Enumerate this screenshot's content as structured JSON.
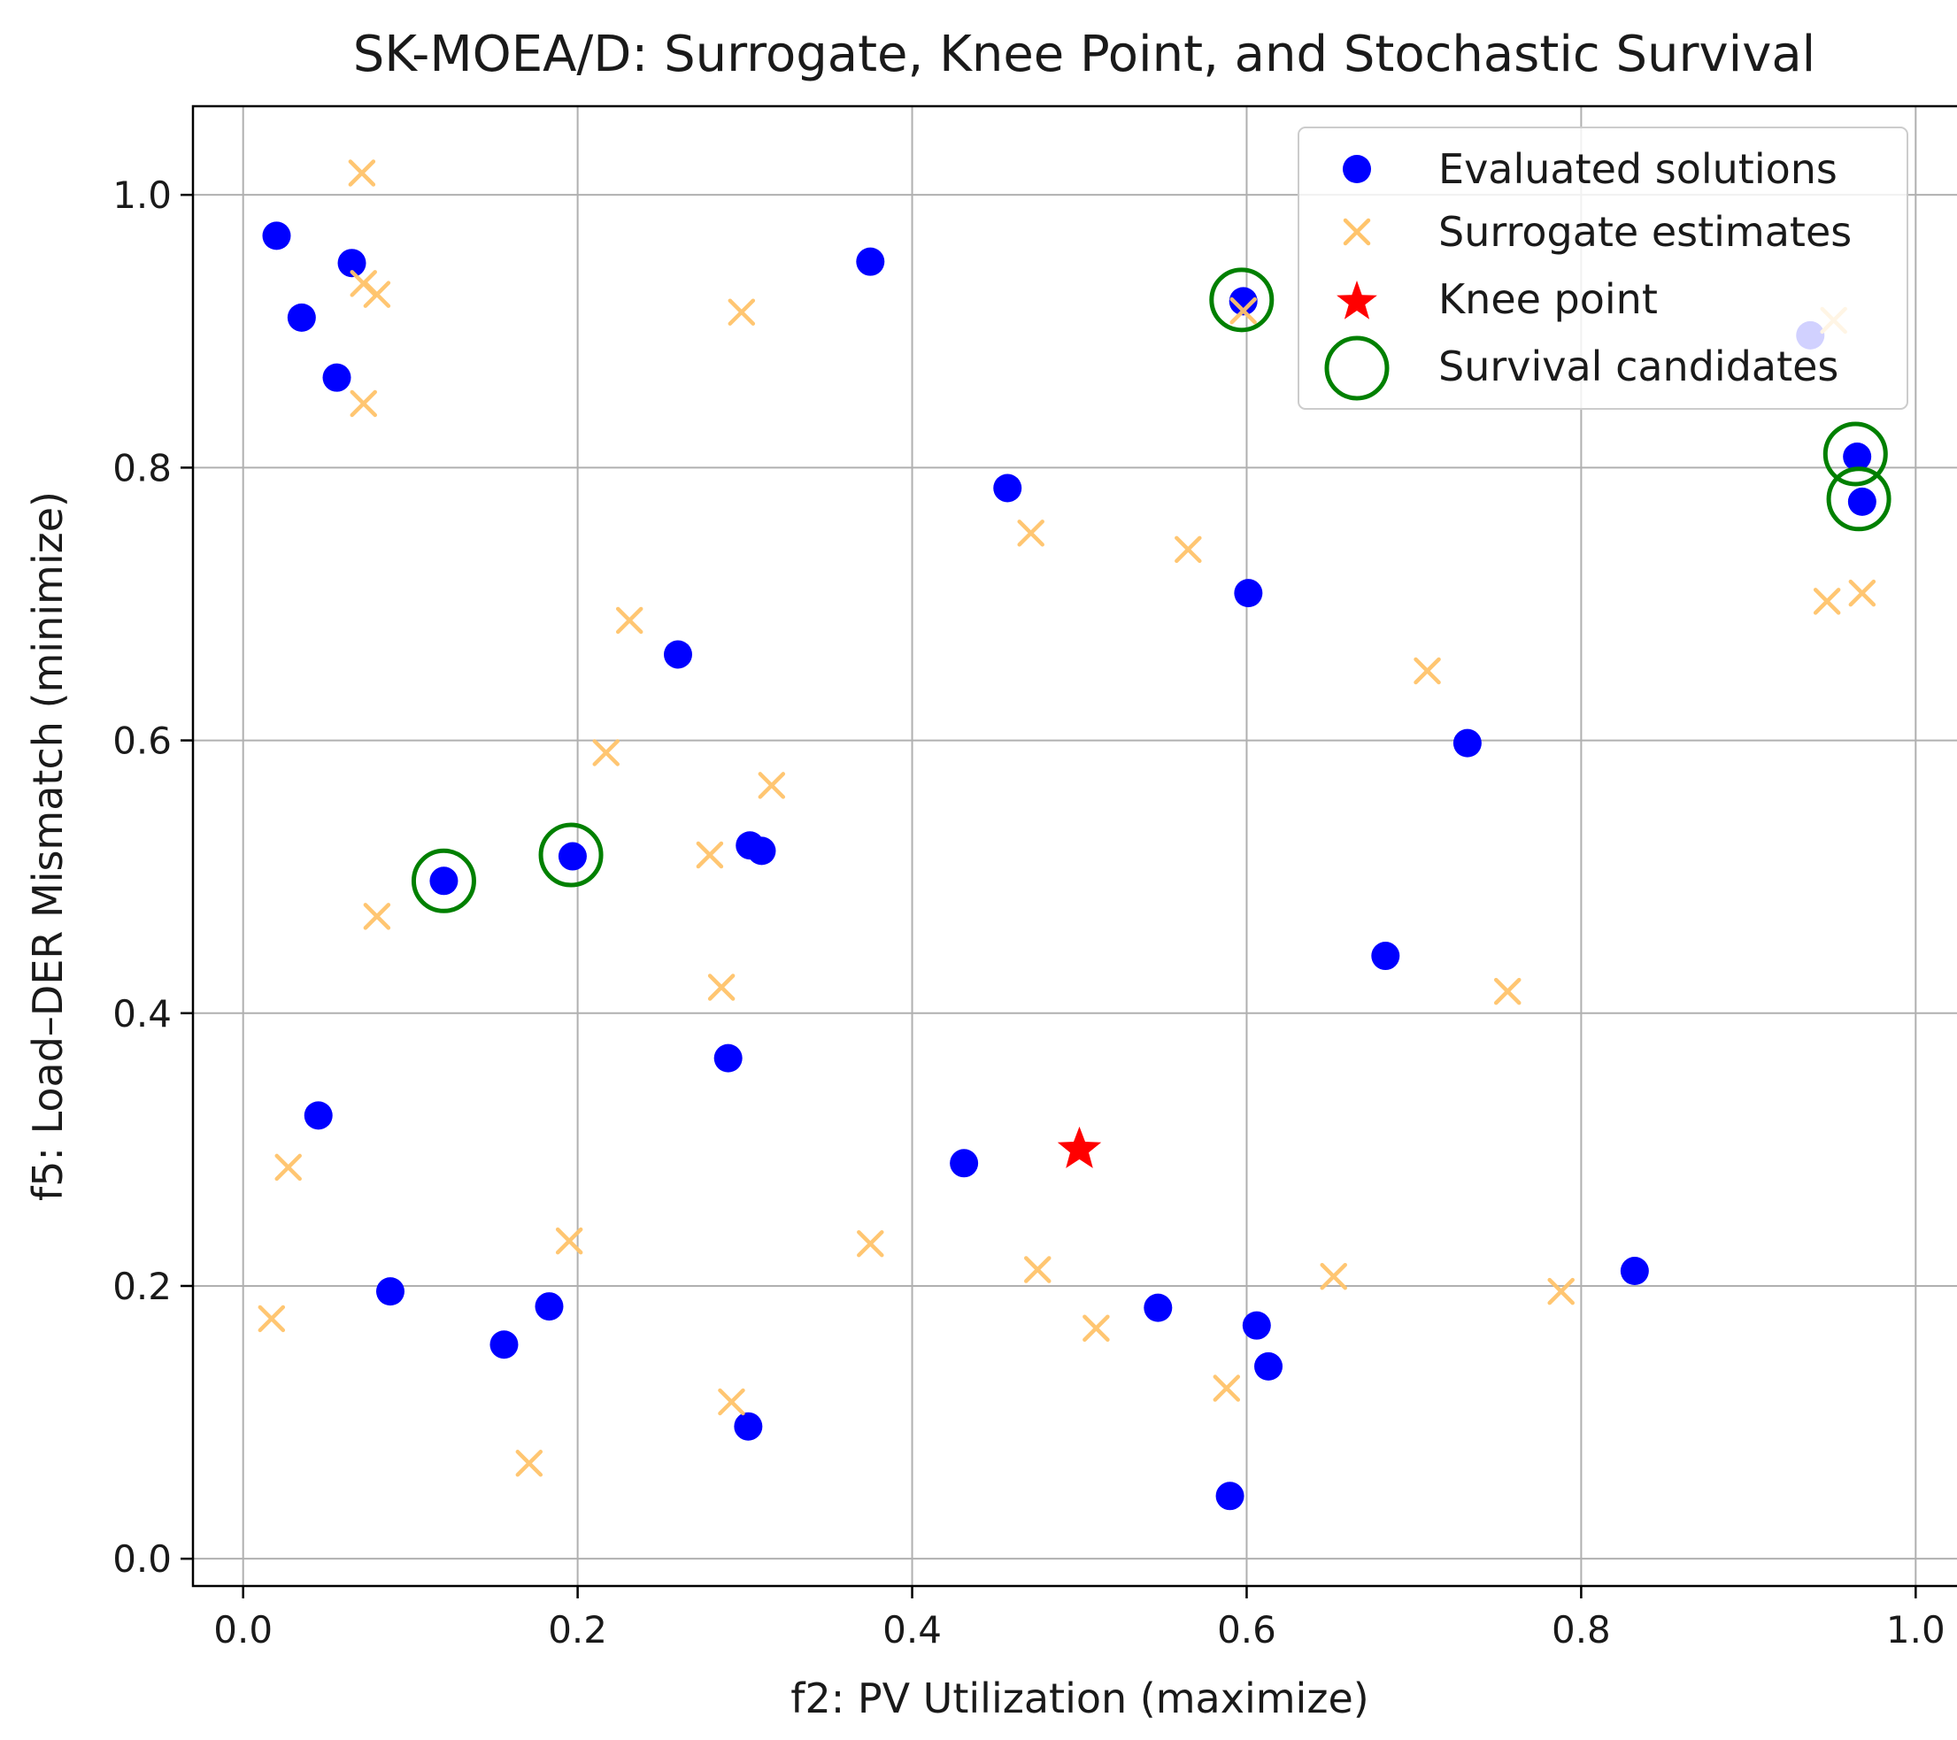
{
  "chart_data": {
    "type": "scatter",
    "title": "SK-MOEA/D: Surrogate, Knee Point, and Stochastic Survival",
    "xlabel": "f2: PV Utilization (maximize)",
    "ylabel": "f5: Load–DER Mismatch (minimize)",
    "xlim": [
      -0.03,
      1.03
    ],
    "ylim": [
      -0.02,
      1.065
    ],
    "xticks": [
      0.0,
      0.2,
      0.4,
      0.6,
      0.8,
      1.0
    ],
    "xtick_labels": [
      "0.0",
      "0.2",
      "0.4",
      "0.6",
      "0.8",
      "1.0"
    ],
    "yticks": [
      0.0,
      0.2,
      0.4,
      0.6,
      0.8,
      1.0
    ],
    "ytick_labels": [
      "0.0",
      "0.2",
      "0.4",
      "0.6",
      "0.8",
      "1.0"
    ],
    "grid": true,
    "legend_position": "top-right",
    "colors": {
      "evaluated": "#0000ff",
      "surrogate": "#ffc46b",
      "knee": "#ff0000",
      "survival": "#008000"
    },
    "series": [
      {
        "name": "Evaluated solutions",
        "marker": "circle",
        "points": [
          [
            0.02,
            0.97
          ],
          [
            0.065,
            0.95
          ],
          [
            0.035,
            0.91
          ],
          [
            0.056,
            0.866
          ],
          [
            0.375,
            0.951
          ],
          [
            0.598,
            0.922
          ],
          [
            0.937,
            0.897
          ],
          [
            0.457,
            0.785
          ],
          [
            0.601,
            0.708
          ],
          [
            0.965,
            0.808
          ],
          [
            0.968,
            0.775
          ],
          [
            0.26,
            0.663
          ],
          [
            0.732,
            0.598
          ],
          [
            0.12,
            0.497
          ],
          [
            0.197,
            0.515
          ],
          [
            0.303,
            0.523
          ],
          [
            0.31,
            0.519
          ],
          [
            0.683,
            0.442
          ],
          [
            0.29,
            0.367
          ],
          [
            0.045,
            0.325
          ],
          [
            0.431,
            0.29
          ],
          [
            0.832,
            0.211
          ],
          [
            0.088,
            0.196
          ],
          [
            0.183,
            0.185
          ],
          [
            0.156,
            0.157
          ],
          [
            0.547,
            0.184
          ],
          [
            0.606,
            0.171
          ],
          [
            0.613,
            0.141
          ],
          [
            0.302,
            0.097
          ],
          [
            0.59,
            0.046
          ]
        ]
      },
      {
        "name": "Surrogate estimates",
        "marker": "x",
        "points": [
          [
            0.071,
            1.016
          ],
          [
            0.072,
            0.935
          ],
          [
            0.08,
            0.927
          ],
          [
            0.072,
            0.847
          ],
          [
            0.298,
            0.914
          ],
          [
            0.951,
            0.908
          ],
          [
            0.598,
            0.915
          ],
          [
            0.471,
            0.752
          ],
          [
            0.565,
            0.74
          ],
          [
            0.947,
            0.702
          ],
          [
            0.968,
            0.708
          ],
          [
            0.231,
            0.688
          ],
          [
            0.708,
            0.651
          ],
          [
            0.217,
            0.591
          ],
          [
            0.316,
            0.567
          ],
          [
            0.279,
            0.516
          ],
          [
            0.08,
            0.471
          ],
          [
            0.286,
            0.419
          ],
          [
            0.756,
            0.416
          ],
          [
            0.027,
            0.287
          ],
          [
            0.195,
            0.233
          ],
          [
            0.375,
            0.231
          ],
          [
            0.475,
            0.212
          ],
          [
            0.652,
            0.207
          ],
          [
            0.788,
            0.196
          ],
          [
            0.017,
            0.176
          ],
          [
            0.51,
            0.169
          ],
          [
            0.588,
            0.125
          ],
          [
            0.292,
            0.115
          ],
          [
            0.171,
            0.07
          ]
        ]
      },
      {
        "name": "Knee point",
        "marker": "star",
        "points": [
          [
            0.5,
            0.3
          ]
        ]
      },
      {
        "name": "Survival candidates",
        "marker": "open-circle",
        "points": [
          [
            0.597,
            0.923
          ],
          [
            0.964,
            0.81
          ],
          [
            0.966,
            0.777
          ],
          [
            0.12,
            0.497
          ],
          [
            0.196,
            0.516
          ]
        ]
      }
    ]
  }
}
